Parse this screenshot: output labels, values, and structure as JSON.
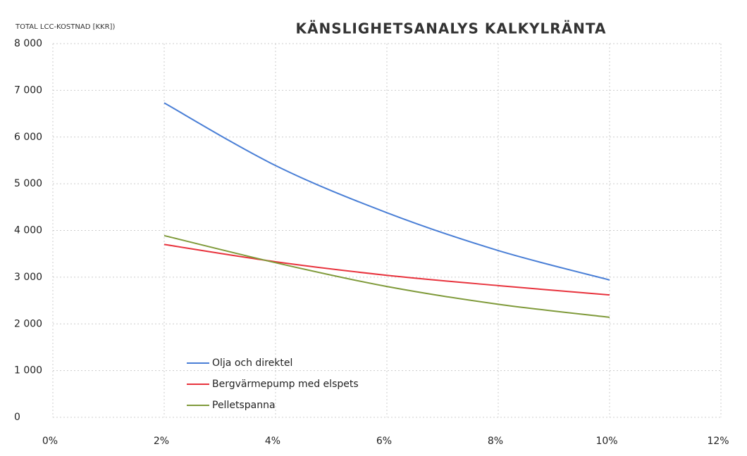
{
  "chart_data": {
    "type": "line",
    "title": "KÄNSLIGHETSANALYS KALKYLRÄNTA",
    "y_label": "TOTAL LCC-KOSTNAD [KKR])",
    "x": [
      2,
      4,
      6,
      8,
      10
    ],
    "series": [
      {
        "name": "Olja och direktel",
        "color": "#4a7fd6",
        "values": [
          6730,
          5390,
          4380,
          3570,
          2940
        ]
      },
      {
        "name": "Bergvärmepump med elspets",
        "color": "#e8333d",
        "values": [
          3700,
          3330,
          3040,
          2820,
          2620
        ]
      },
      {
        "name": "Pelletspanna",
        "color": "#7f9a3a",
        "values": [
          3890,
          3310,
          2800,
          2420,
          2140
        ]
      }
    ],
    "xlim": [
      0,
      12
    ],
    "xticks": [
      {
        "value": 0,
        "label": "0%"
      },
      {
        "value": 2,
        "label": "2%"
      },
      {
        "value": 4,
        "label": "4%"
      },
      {
        "value": 6,
        "label": "6%"
      },
      {
        "value": 8,
        "label": "8%"
      },
      {
        "value": 10,
        "label": "10%"
      },
      {
        "value": 12,
        "label": "12%"
      }
    ],
    "ylim": [
      0,
      8000
    ],
    "yticks": [
      0,
      {
        "value": 1000,
        "label": "1 000"
      },
      {
        "value": 2000,
        "label": "2 000"
      },
      {
        "value": 3000,
        "label": "3 000"
      },
      {
        "value": 4000,
        "label": "4 000"
      },
      {
        "value": 5000,
        "label": "5 000"
      },
      {
        "value": 6000,
        "label": "6 000"
      },
      {
        "value": 7000,
        "label": "7 000"
      },
      {
        "value": 8000,
        "label": "8 000"
      }
    ],
    "grid": true,
    "legend": "lower left"
  }
}
